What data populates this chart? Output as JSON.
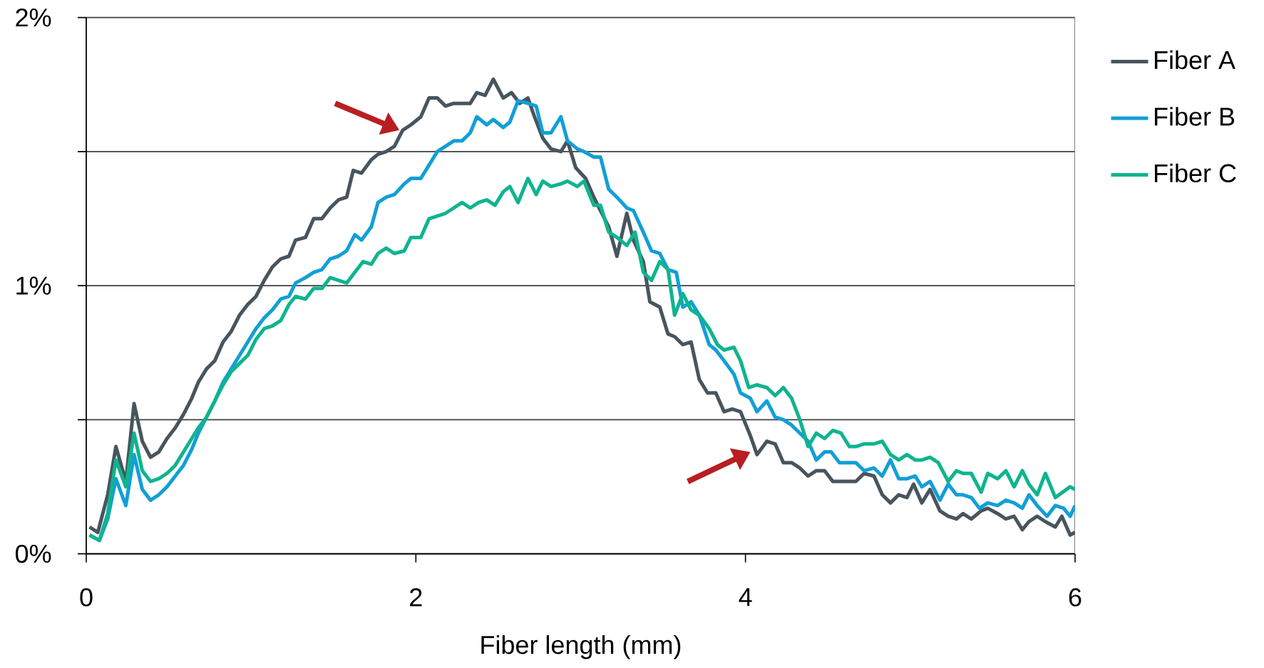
{
  "chart_data": {
    "type": "line",
    "xlabel": "Fiber length (mm)",
    "xlim": [
      0,
      6
    ],
    "xticks": [
      0,
      2,
      4,
      6
    ],
    "ylim": [
      0,
      2
    ],
    "yticks": [
      {
        "value": 0,
        "label": "0%"
      },
      {
        "value": 0.5,
        "label": null
      },
      {
        "value": 1,
        "label": "1%"
      },
      {
        "value": 1.5,
        "label": null
      },
      {
        "value": 2,
        "label": "2%"
      }
    ],
    "grid": "y",
    "legend": "right",
    "marker": "none",
    "line_style": "solid",
    "series": [
      {
        "name": "Fiber A",
        "color": "#47555e",
        "x": [
          0.02,
          0.07,
          0.13,
          0.18,
          0.24,
          0.29,
          0.34,
          0.39,
          0.44,
          0.49,
          0.54,
          0.59,
          0.64,
          0.68,
          0.73,
          0.78,
          0.83,
          0.88,
          0.93,
          0.98,
          1.03,
          1.08,
          1.13,
          1.18,
          1.23,
          1.27,
          1.33,
          1.38,
          1.43,
          1.48,
          1.53,
          1.58,
          1.62,
          1.67,
          1.73,
          1.77,
          1.82,
          1.87,
          1.92,
          1.97,
          2.03,
          2.08,
          2.13,
          2.18,
          2.23,
          2.33,
          2.37,
          2.42,
          2.47,
          2.53,
          2.58,
          2.63,
          2.68,
          2.72,
          2.77,
          2.82,
          2.88,
          2.92,
          2.97,
          3.03,
          3.08,
          3.12,
          3.17,
          3.22,
          3.28,
          3.32,
          3.38,
          3.42,
          3.48,
          3.53,
          3.57,
          3.62,
          3.67,
          3.72,
          3.77,
          3.82,
          3.87,
          3.92,
          3.97,
          4.03,
          4.07,
          4.13,
          4.18,
          4.23,
          4.28,
          4.33,
          4.38,
          4.43,
          4.48,
          4.53,
          4.58,
          4.63,
          4.67,
          4.72,
          4.78,
          4.83,
          4.88,
          4.93,
          4.98,
          5.02,
          5.07,
          5.12,
          5.18,
          5.23,
          5.28,
          5.32,
          5.37,
          5.43,
          5.47,
          5.53,
          5.58,
          5.63,
          5.68,
          5.72,
          5.77,
          5.82,
          5.88,
          5.92,
          5.97,
          6.0
        ],
        "values": [
          0.1,
          0.08,
          0.22,
          0.4,
          0.27,
          0.56,
          0.42,
          0.36,
          0.38,
          0.43,
          0.47,
          0.52,
          0.58,
          0.64,
          0.69,
          0.72,
          0.79,
          0.83,
          0.89,
          0.93,
          0.96,
          1.02,
          1.07,
          1.1,
          1.11,
          1.17,
          1.18,
          1.25,
          1.25,
          1.29,
          1.32,
          1.33,
          1.43,
          1.42,
          1.47,
          1.49,
          1.5,
          1.52,
          1.58,
          1.6,
          1.63,
          1.7,
          1.7,
          1.67,
          1.68,
          1.68,
          1.72,
          1.71,
          1.77,
          1.7,
          1.72,
          1.68,
          1.7,
          1.63,
          1.55,
          1.51,
          1.5,
          1.54,
          1.44,
          1.4,
          1.33,
          1.28,
          1.22,
          1.11,
          1.27,
          1.17,
          1.09,
          0.94,
          0.92,
          0.82,
          0.81,
          0.78,
          0.79,
          0.65,
          0.6,
          0.6,
          0.53,
          0.54,
          0.53,
          0.44,
          0.37,
          0.42,
          0.41,
          0.34,
          0.34,
          0.32,
          0.29,
          0.31,
          0.31,
          0.27,
          0.27,
          0.27,
          0.27,
          0.3,
          0.29,
          0.22,
          0.19,
          0.22,
          0.21,
          0.26,
          0.19,
          0.24,
          0.16,
          0.14,
          0.13,
          0.15,
          0.13,
          0.16,
          0.17,
          0.15,
          0.13,
          0.14,
          0.09,
          0.12,
          0.14,
          0.12,
          0.1,
          0.14,
          0.07,
          0.08
        ]
      },
      {
        "name": "Fiber B",
        "color": "#129fd6",
        "x": [
          0.02,
          0.08,
          0.13,
          0.18,
          0.24,
          0.29,
          0.34,
          0.39,
          0.44,
          0.49,
          0.54,
          0.59,
          0.64,
          0.68,
          0.73,
          0.78,
          0.83,
          0.88,
          0.93,
          0.98,
          1.03,
          1.08,
          1.13,
          1.18,
          1.23,
          1.27,
          1.33,
          1.38,
          1.43,
          1.48,
          1.53,
          1.58,
          1.63,
          1.67,
          1.73,
          1.77,
          1.82,
          1.87,
          1.93,
          1.97,
          2.03,
          2.08,
          2.13,
          2.18,
          2.23,
          2.28,
          2.33,
          2.37,
          2.43,
          2.47,
          2.53,
          2.57,
          2.62,
          2.68,
          2.73,
          2.77,
          2.82,
          2.88,
          2.92,
          2.98,
          3.02,
          3.08,
          3.12,
          3.17,
          3.22,
          3.28,
          3.32,
          3.38,
          3.43,
          3.48,
          3.53,
          3.58,
          3.62,
          3.67,
          3.72,
          3.78,
          3.82,
          3.87,
          3.93,
          3.97,
          4.03,
          4.07,
          4.13,
          4.18,
          4.23,
          4.28,
          4.33,
          4.38,
          4.43,
          4.48,
          4.52,
          4.57,
          4.62,
          4.67,
          4.72,
          4.78,
          4.83,
          4.88,
          4.93,
          4.98,
          5.03,
          5.07,
          5.12,
          5.18,
          5.23,
          5.28,
          5.32,
          5.37,
          5.42,
          5.47,
          5.53,
          5.58,
          5.63,
          5.68,
          5.72,
          5.77,
          5.83,
          5.88,
          5.93,
          5.97,
          6.0
        ],
        "values": [
          0.07,
          0.05,
          0.13,
          0.28,
          0.18,
          0.37,
          0.24,
          0.2,
          0.22,
          0.25,
          0.29,
          0.33,
          0.39,
          0.45,
          0.51,
          0.57,
          0.64,
          0.69,
          0.74,
          0.79,
          0.84,
          0.88,
          0.91,
          0.95,
          0.96,
          1.01,
          1.03,
          1.05,
          1.06,
          1.1,
          1.11,
          1.13,
          1.19,
          1.17,
          1.22,
          1.31,
          1.33,
          1.34,
          1.38,
          1.4,
          1.4,
          1.45,
          1.5,
          1.52,
          1.54,
          1.54,
          1.57,
          1.63,
          1.6,
          1.62,
          1.59,
          1.61,
          1.69,
          1.68,
          1.67,
          1.57,
          1.57,
          1.63,
          1.54,
          1.51,
          1.5,
          1.48,
          1.48,
          1.36,
          1.33,
          1.29,
          1.28,
          1.2,
          1.13,
          1.12,
          1.06,
          1.05,
          0.92,
          0.94,
          0.89,
          0.78,
          0.76,
          0.72,
          0.67,
          0.6,
          0.58,
          0.53,
          0.57,
          0.51,
          0.5,
          0.48,
          0.45,
          0.42,
          0.35,
          0.38,
          0.38,
          0.34,
          0.34,
          0.34,
          0.31,
          0.32,
          0.29,
          0.35,
          0.28,
          0.28,
          0.29,
          0.25,
          0.27,
          0.2,
          0.26,
          0.22,
          0.22,
          0.21,
          0.17,
          0.19,
          0.18,
          0.2,
          0.19,
          0.17,
          0.22,
          0.18,
          0.14,
          0.18,
          0.17,
          0.14,
          0.18
        ]
      },
      {
        "name": "Fiber C",
        "color": "#0fb48e",
        "x": [
          0.02,
          0.08,
          0.13,
          0.18,
          0.24,
          0.29,
          0.34,
          0.39,
          0.44,
          0.49,
          0.54,
          0.59,
          0.64,
          0.68,
          0.73,
          0.78,
          0.83,
          0.88,
          0.93,
          0.98,
          1.03,
          1.08,
          1.13,
          1.18,
          1.23,
          1.27,
          1.33,
          1.38,
          1.43,
          1.48,
          1.53,
          1.58,
          1.63,
          1.68,
          1.73,
          1.77,
          1.82,
          1.87,
          1.93,
          1.97,
          2.03,
          2.08,
          2.13,
          2.18,
          2.23,
          2.28,
          2.33,
          2.38,
          2.43,
          2.48,
          2.53,
          2.57,
          2.62,
          2.68,
          2.73,
          2.77,
          2.82,
          2.88,
          2.92,
          2.98,
          3.02,
          3.08,
          3.12,
          3.17,
          3.22,
          3.28,
          3.33,
          3.38,
          3.43,
          3.48,
          3.53,
          3.57,
          3.62,
          3.67,
          3.72,
          3.78,
          3.83,
          3.87,
          3.93,
          3.97,
          4.02,
          4.07,
          4.13,
          4.18,
          4.23,
          4.28,
          4.33,
          4.38,
          4.43,
          4.48,
          4.53,
          4.58,
          4.63,
          4.67,
          4.72,
          4.78,
          4.83,
          4.88,
          4.93,
          4.98,
          5.03,
          5.07,
          5.12,
          5.17,
          5.23,
          5.28,
          5.32,
          5.37,
          5.43,
          5.47,
          5.53,
          5.58,
          5.63,
          5.68,
          5.72,
          5.77,
          5.82,
          5.88,
          5.97,
          6.0
        ],
        "values": [
          0.07,
          0.05,
          0.15,
          0.35,
          0.25,
          0.45,
          0.31,
          0.27,
          0.28,
          0.3,
          0.33,
          0.38,
          0.43,
          0.47,
          0.51,
          0.57,
          0.63,
          0.68,
          0.71,
          0.74,
          0.8,
          0.84,
          0.85,
          0.87,
          0.93,
          0.96,
          0.95,
          0.99,
          0.99,
          1.03,
          1.02,
          1.01,
          1.05,
          1.09,
          1.08,
          1.12,
          1.14,
          1.12,
          1.13,
          1.18,
          1.18,
          1.25,
          1.26,
          1.27,
          1.29,
          1.31,
          1.29,
          1.31,
          1.32,
          1.3,
          1.35,
          1.37,
          1.31,
          1.4,
          1.34,
          1.39,
          1.37,
          1.38,
          1.39,
          1.37,
          1.39,
          1.3,
          1.3,
          1.2,
          1.18,
          1.15,
          1.2,
          1.05,
          1.02,
          1.09,
          1.06,
          0.89,
          0.97,
          0.91,
          0.89,
          0.84,
          0.78,
          0.76,
          0.77,
          0.72,
          0.62,
          0.63,
          0.62,
          0.59,
          0.62,
          0.58,
          0.5,
          0.4,
          0.45,
          0.43,
          0.46,
          0.45,
          0.4,
          0.4,
          0.41,
          0.41,
          0.42,
          0.37,
          0.35,
          0.37,
          0.35,
          0.35,
          0.36,
          0.34,
          0.27,
          0.31,
          0.3,
          0.3,
          0.23,
          0.3,
          0.28,
          0.31,
          0.25,
          0.31,
          0.26,
          0.22,
          0.3,
          0.21,
          0.25,
          0.24
        ]
      }
    ]
  }
}
